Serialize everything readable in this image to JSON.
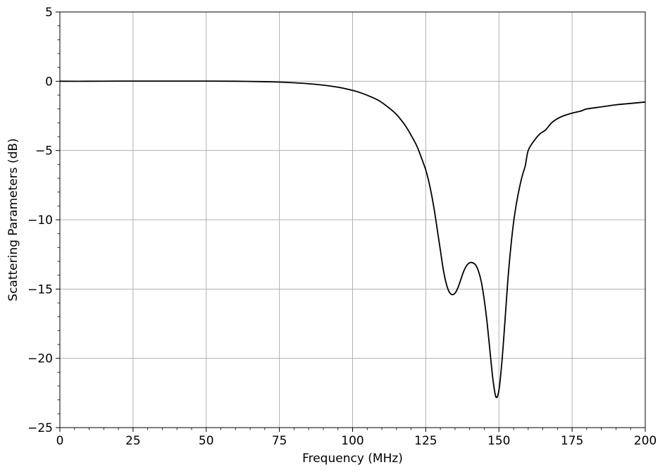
{
  "chart_data": {
    "type": "line",
    "title": "",
    "xlabel": "Frequency (MHz)",
    "ylabel": "Scattering Parameters (dB)",
    "xlim": [
      0,
      200
    ],
    "ylim": [
      -25,
      5
    ],
    "grid": true,
    "xticks": [
      0,
      25,
      50,
      75,
      100,
      125,
      150,
      175,
      200
    ],
    "xtick_labels": [
      "0",
      "25",
      "50",
      "75",
      "100",
      "125",
      "150",
      "175",
      "200"
    ],
    "yticks": [
      5,
      0,
      -5,
      -10,
      -15,
      -20,
      -25
    ],
    "ytick_labels": [
      "5",
      "0",
      "−5",
      "−10",
      "−15",
      "−20",
      "−25"
    ],
    "series": [
      {
        "color": "#000000",
        "x": [
          0,
          10,
          20,
          30,
          40,
          50,
          60,
          70,
          75,
          80,
          85,
          90,
          95,
          100,
          103,
          106,
          109,
          112,
          115,
          118,
          120,
          122,
          124,
          125,
          126,
          127,
          128,
          129,
          130,
          131,
          132,
          133,
          134,
          135,
          136,
          137,
          138,
          139,
          140,
          141,
          142,
          143,
          144,
          145,
          146,
          147,
          148,
          149,
          150,
          151,
          152,
          153,
          154,
          155,
          156,
          157,
          158,
          159,
          160,
          162,
          164,
          166,
          168,
          170,
          172,
          175,
          178,
          180,
          185,
          190,
          195,
          200
        ],
        "y": [
          0,
          0,
          0.01,
          0.01,
          0.01,
          0.01,
          0,
          -0.03,
          -0.06,
          -0.11,
          -0.18,
          -0.28,
          -0.43,
          -0.66,
          -0.85,
          -1.1,
          -1.4,
          -1.85,
          -2.4,
          -3.2,
          -3.9,
          -4.7,
          -5.8,
          -6.4,
          -7.2,
          -8.2,
          -9.4,
          -10.8,
          -12.2,
          -13.6,
          -14.6,
          -15.2,
          -15.4,
          -15.3,
          -14.9,
          -14.3,
          -13.7,
          -13.3,
          -13.1,
          -13.1,
          -13.25,
          -13.7,
          -14.5,
          -15.8,
          -17.5,
          -19.6,
          -21.6,
          -22.8,
          -22.3,
          -20.3,
          -17.5,
          -14.5,
          -12.1,
          -10.2,
          -8.8,
          -7.7,
          -6.8,
          -6.1,
          -5.0,
          -4.3,
          -3.8,
          -3.5,
          -3.0,
          -2.7,
          -2.5,
          -2.3,
          -2.15,
          -2.0,
          -1.85,
          -1.7,
          -1.6,
          -1.5
        ]
      }
    ]
  }
}
